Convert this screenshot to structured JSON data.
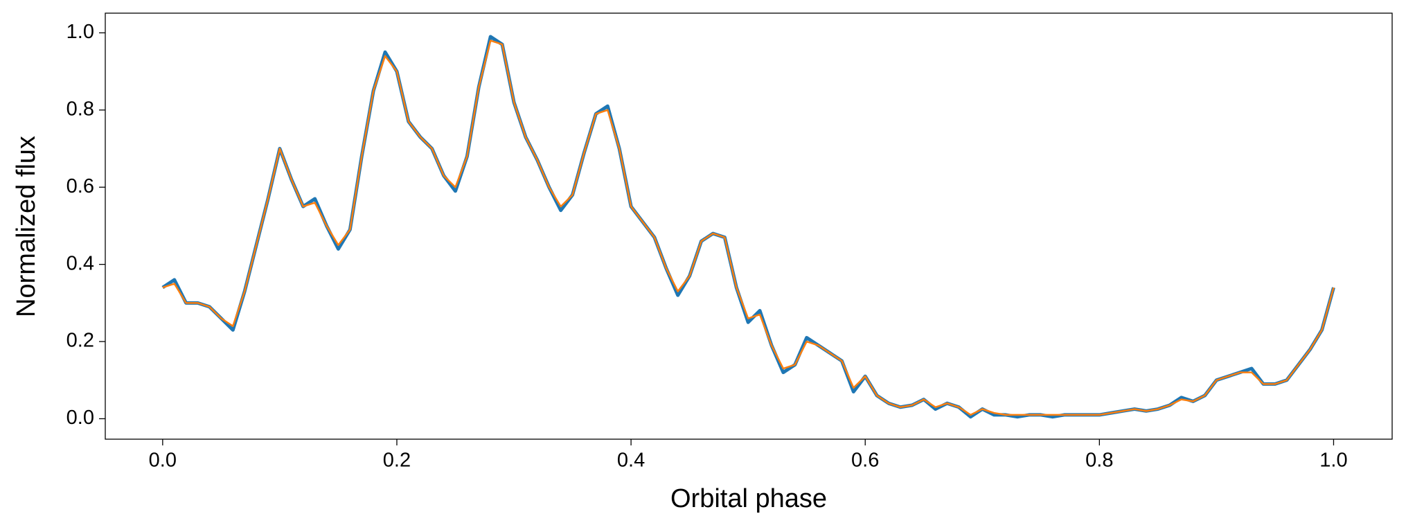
{
  "chart_data": {
    "type": "line",
    "xlabel": "Orbital phase",
    "ylabel": "Normalized flux",
    "xlim": [
      -0.049,
      1.05
    ],
    "ylim": [
      -0.053,
      1.051
    ],
    "xticks": [
      {
        "value": 0,
        "label": "0.0"
      },
      0.2,
      0.4,
      0.6,
      0.8,
      {
        "value": 1,
        "label": "1.0"
      }
    ],
    "yticks": [
      {
        "value": 0,
        "label": "0.0"
      },
      0.2,
      0.4,
      0.6,
      0.8,
      {
        "value": 1,
        "label": "1.0"
      }
    ],
    "x": [
      0,
      0.01,
      0.02,
      0.03,
      0.04,
      0.05,
      0.06,
      0.07,
      0.08,
      0.09,
      0.1,
      0.11,
      0.12,
      0.13,
      0.14,
      0.15,
      0.16,
      0.17,
      0.18,
      0.19,
      0.2,
      0.21,
      0.22,
      0.23,
      0.24,
      0.25,
      0.26,
      0.27,
      0.28,
      0.29,
      0.3,
      0.31,
      0.32,
      0.33,
      0.34,
      0.35,
      0.36,
      0.37,
      0.38,
      0.39,
      0.4,
      0.41,
      0.42,
      0.43,
      0.44,
      0.45,
      0.46,
      0.47,
      0.48,
      0.49,
      0.5,
      0.51,
      0.52,
      0.53,
      0.54,
      0.55,
      0.56,
      0.57,
      0.58,
      0.59,
      0.6,
      0.61,
      0.62,
      0.63,
      0.64,
      0.65,
      0.66,
      0.67,
      0.68,
      0.69,
      0.7,
      0.71,
      0.72,
      0.73,
      0.74,
      0.75,
      0.76,
      0.77,
      0.78,
      0.79,
      0.8,
      0.81,
      0.82,
      0.83,
      0.84,
      0.85,
      0.86,
      0.87,
      0.88,
      0.89,
      0.9,
      0.91,
      0.92,
      0.93,
      0.94,
      0.95,
      0.96,
      0.97,
      0.98,
      0.99,
      1
    ],
    "series": [
      {
        "color": "#1f77b4",
        "width": 5,
        "values": [
          0.34,
          0.36,
          0.3,
          0.3,
          0.29,
          0.26,
          0.23,
          0.33,
          0.45,
          0.57,
          0.7,
          0.62,
          0.55,
          0.57,
          0.5,
          0.44,
          0.49,
          0.68,
          0.85,
          0.95,
          0.9,
          0.77,
          0.73,
          0.7,
          0.63,
          0.59,
          0.68,
          0.86,
          0.99,
          0.97,
          0.82,
          0.73,
          0.67,
          0.6,
          0.54,
          0.58,
          0.69,
          0.79,
          0.81,
          0.7,
          0.55,
          0.51,
          0.47,
          0.39,
          0.32,
          0.37,
          0.46,
          0.48,
          0.47,
          0.34,
          0.25,
          0.28,
          0.19,
          0.12,
          0.14,
          0.21,
          0.19,
          0.17,
          0.15,
          0.07,
          0.11,
          0.06,
          0.04,
          0.03,
          0.035,
          0.05,
          0.025,
          0.04,
          0.03,
          0.005,
          0.025,
          0.01,
          0.01,
          0.005,
          0.01,
          0.01,
          0.005,
          0.01,
          0.01,
          0.01,
          0.01,
          0.015,
          0.02,
          0.025,
          0.02,
          0.025,
          0.035,
          0.055,
          0.045,
          0.06,
          0.1,
          0.11,
          0.12,
          0.13,
          0.09,
          0.09,
          0.1,
          0.14,
          0.18,
          0.23,
          0.34
        ]
      },
      {
        "color": "#ff7f0e",
        "width": 2.5,
        "values": [
          0.34,
          0.35,
          0.3,
          0.3,
          0.29,
          0.26,
          0.24,
          0.33,
          0.45,
          0.57,
          0.7,
          0.62,
          0.55,
          0.56,
          0.5,
          0.45,
          0.49,
          0.68,
          0.85,
          0.94,
          0.9,
          0.77,
          0.73,
          0.7,
          0.63,
          0.6,
          0.68,
          0.86,
          0.98,
          0.97,
          0.82,
          0.73,
          0.67,
          0.6,
          0.55,
          0.58,
          0.69,
          0.79,
          0.8,
          0.7,
          0.55,
          0.51,
          0.47,
          0.39,
          0.33,
          0.37,
          0.46,
          0.48,
          0.47,
          0.34,
          0.26,
          0.27,
          0.19,
          0.13,
          0.14,
          0.2,
          0.19,
          0.17,
          0.15,
          0.08,
          0.11,
          0.06,
          0.04,
          0.03,
          0.035,
          0.05,
          0.03,
          0.04,
          0.03,
          0.01,
          0.025,
          0.015,
          0.01,
          0.01,
          0.01,
          0.01,
          0.01,
          0.01,
          0.01,
          0.01,
          0.01,
          0.015,
          0.02,
          0.025,
          0.02,
          0.025,
          0.035,
          0.05,
          0.045,
          0.06,
          0.1,
          0.11,
          0.12,
          0.12,
          0.09,
          0.09,
          0.1,
          0.14,
          0.18,
          0.23,
          0.34
        ]
      }
    ]
  }
}
